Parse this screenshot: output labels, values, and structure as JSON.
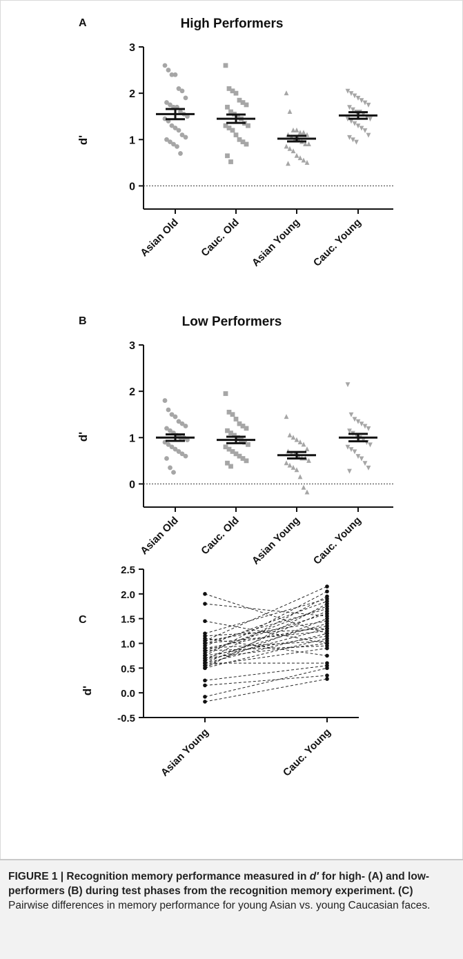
{
  "chart_data": [
    {
      "panel": "A",
      "type": "scatter",
      "title": "High Performers",
      "ylabel": "d'",
      "xlabel": "",
      "categories": [
        "Asian Old",
        "Cauc. Old",
        "Asian Young",
        "Cauc. Young"
      ],
      "ylim": [
        -0.5,
        3
      ],
      "yticks": [
        0,
        1,
        2,
        3
      ],
      "grid": false,
      "reference_line_y": 0,
      "marker_color": "#a6a6a6",
      "series": [
        {
          "marker": "circle",
          "mean": 1.55,
          "sem": 0.11,
          "values": [
            2.6,
            2.5,
            2.4,
            2.4,
            2.1,
            2.05,
            1.9,
            1.8,
            1.75,
            1.7,
            1.7,
            1.6,
            1.55,
            1.5,
            1.45,
            1.4,
            1.3,
            1.25,
            1.2,
            1.1,
            1.05,
            1.0,
            0.95,
            0.9,
            0.85,
            0.7
          ]
        },
        {
          "marker": "square",
          "mean": 1.45,
          "sem": 0.09,
          "values": [
            2.6,
            2.1,
            2.05,
            2.0,
            1.85,
            1.8,
            1.75,
            1.7,
            1.6,
            1.55,
            1.5,
            1.45,
            1.35,
            1.3,
            1.3,
            1.25,
            1.2,
            1.1,
            1.0,
            0.95,
            0.9,
            0.65,
            0.52
          ]
        },
        {
          "marker": "triangle-up",
          "mean": 1.02,
          "sem": 0.06,
          "values": [
            2.0,
            1.6,
            1.2,
            1.2,
            1.15,
            1.15,
            1.1,
            1.1,
            1.05,
            1.0,
            1.0,
            0.95,
            0.9,
            0.9,
            0.85,
            0.8,
            0.75,
            0.65,
            0.6,
            0.55,
            0.5,
            0.48
          ]
        },
        {
          "marker": "triangle-down",
          "mean": 1.52,
          "sem": 0.07,
          "values": [
            2.05,
            2.0,
            1.95,
            1.9,
            1.85,
            1.8,
            1.75,
            1.7,
            1.65,
            1.6,
            1.6,
            1.55,
            1.5,
            1.45,
            1.45,
            1.4,
            1.35,
            1.3,
            1.25,
            1.2,
            1.1,
            1.05,
            1.0,
            0.95
          ]
        }
      ]
    },
    {
      "panel": "B",
      "type": "scatter",
      "title": "Low Performers",
      "ylabel": "d'",
      "xlabel": "",
      "categories": [
        "Asian Old",
        "Cauc. Old",
        "Asian Young",
        "Cauc. Young"
      ],
      "ylim": [
        -0.5,
        3
      ],
      "yticks": [
        0,
        1,
        2,
        3
      ],
      "grid": false,
      "reference_line_y": 0,
      "marker_color": "#a6a6a6",
      "series": [
        {
          "marker": "circle",
          "mean": 1.0,
          "sem": 0.07,
          "values": [
            1.8,
            1.6,
            1.5,
            1.45,
            1.35,
            1.3,
            1.25,
            1.2,
            1.15,
            1.1,
            1.05,
            1.0,
            1.0,
            0.95,
            0.9,
            0.85,
            0.8,
            0.75,
            0.7,
            0.65,
            0.6,
            0.55,
            0.35,
            0.25
          ]
        },
        {
          "marker": "square",
          "mean": 0.95,
          "sem": 0.07,
          "values": [
            1.95,
            1.55,
            1.5,
            1.4,
            1.3,
            1.25,
            1.2,
            1.15,
            1.1,
            1.05,
            1.0,
            0.95,
            0.9,
            0.85,
            0.8,
            0.75,
            0.7,
            0.65,
            0.6,
            0.55,
            0.5,
            0.45,
            0.38
          ]
        },
        {
          "marker": "triangle-up",
          "mean": 0.62,
          "sem": 0.07,
          "values": [
            1.45,
            1.05,
            1.0,
            0.95,
            0.9,
            0.85,
            0.75,
            0.7,
            0.65,
            0.65,
            0.6,
            0.55,
            0.55,
            0.5,
            0.45,
            0.4,
            0.35,
            0.3,
            0.15,
            -0.08,
            -0.18
          ]
        },
        {
          "marker": "triangle-down",
          "mean": 1.0,
          "sem": 0.08,
          "values": [
            2.15,
            1.5,
            1.4,
            1.35,
            1.3,
            1.25,
            1.2,
            1.15,
            1.1,
            1.05,
            1.0,
            0.95,
            0.9,
            0.85,
            0.8,
            0.75,
            0.7,
            0.6,
            0.55,
            0.45,
            0.35,
            0.28
          ]
        }
      ]
    },
    {
      "panel": "C",
      "type": "line",
      "title": "",
      "ylabel": "d'",
      "xlabel": "",
      "categories": [
        "Asian Young",
        "Cauc. Young"
      ],
      "ylim": [
        -0.5,
        2.5
      ],
      "yticks": [
        -0.5,
        0.0,
        0.5,
        1.0,
        1.5,
        2.0,
        2.5
      ],
      "ytick_labels": [
        "-0.5",
        "0.0",
        "0.5",
        "1.0",
        "1.5",
        "2.0",
        "2.5"
      ],
      "grid": false,
      "line_style": "dashed",
      "pairs": [
        [
          2.0,
          1.2
        ],
        [
          1.8,
          1.55
        ],
        [
          1.45,
          1.0
        ],
        [
          1.2,
          1.9
        ],
        [
          1.15,
          1.3
        ],
        [
          1.1,
          0.75
        ],
        [
          1.05,
          2.15
        ],
        [
          1.05,
          1.45
        ],
        [
          1.0,
          1.7
        ],
        [
          1.0,
          1.25
        ],
        [
          0.95,
          1.85
        ],
        [
          0.9,
          1.35
        ],
        [
          0.9,
          1.05
        ],
        [
          0.85,
          1.6
        ],
        [
          0.85,
          0.95
        ],
        [
          0.8,
          1.75
        ],
        [
          0.75,
          1.15
        ],
        [
          0.75,
          2.05
        ],
        [
          0.7,
          1.4
        ],
        [
          0.7,
          1.0
        ],
        [
          0.65,
          1.95
        ],
        [
          0.65,
          1.3
        ],
        [
          0.6,
          0.6
        ],
        [
          0.6,
          1.65
        ],
        [
          0.6,
          1.2
        ],
        [
          0.55,
          1.5
        ],
        [
          0.55,
          0.9
        ],
        [
          0.5,
          1.1
        ],
        [
          0.5,
          1.8
        ],
        [
          0.25,
          0.55
        ],
        [
          0.15,
          0.35
        ],
        [
          -0.08,
          0.5
        ],
        [
          -0.18,
          0.28
        ]
      ]
    }
  ],
  "caption": {
    "bold_lead": "FIGURE 1 | Recognition memory performance measured in ",
    "bold_italic": "d′",
    "bold_tail": " for high- (A) and low-performers (B) during test phases from the recognition memory experiment.",
    "bold_c": " (C)",
    "plain": " Pairwise differences in memory performance for young Asian vs. young Caucasian faces."
  }
}
